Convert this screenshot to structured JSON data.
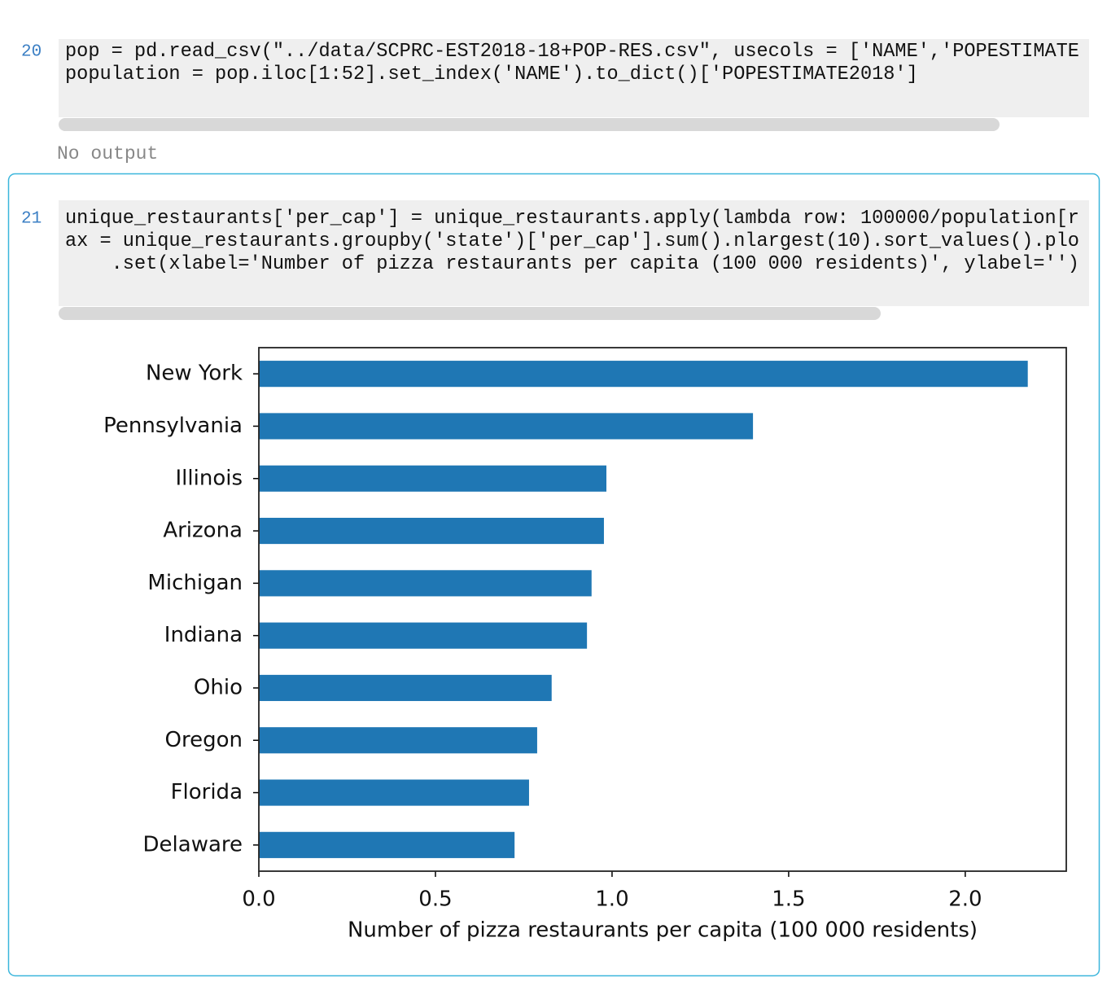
{
  "cells": [
    {
      "prompt": "20",
      "code": [
        "pop = pd.read_csv(\"../data/SCPRC-EST2018-18+POP-RES.csv\", usecols = ['NAME','POPESTIMATE",
        "population = pop.iloc[1:52].set_index('NAME').to_dict()['POPESTIMATE2018']"
      ],
      "output": "No output"
    },
    {
      "prompt": "21",
      "code": [
        "unique_restaurants['per_cap'] = unique_restaurants.apply(lambda row: 100000/population[r",
        "ax = unique_restaurants.groupby('state')['per_cap'].sum().nlargest(10).sort_values().plo",
        "    .set(xlabel='Number of pizza restaurants per capita (100 000 residents)', ylabel='')"
      ]
    }
  ],
  "chart_data": {
    "type": "barh",
    "categories": [
      "New York",
      "Pennsylvania",
      "Illinois",
      "Arizona",
      "Michigan",
      "Indiana",
      "Ohio",
      "Oregon",
      "Florida",
      "Delaware"
    ],
    "values": [
      2.177,
      1.399,
      0.984,
      0.977,
      0.942,
      0.929,
      0.829,
      0.788,
      0.765,
      0.724
    ],
    "color": "#1f77b4",
    "xlabel": "Number of pizza restaurants per capita (100 000 residents)",
    "xlim": [
      0,
      2.286
    ],
    "xticks": [
      {
        "value": 0,
        "label": "0.0"
      },
      0.5,
      {
        "value": 1,
        "label": "1.0"
      },
      1.5,
      {
        "value": 2,
        "label": "2.0"
      }
    ]
  }
}
